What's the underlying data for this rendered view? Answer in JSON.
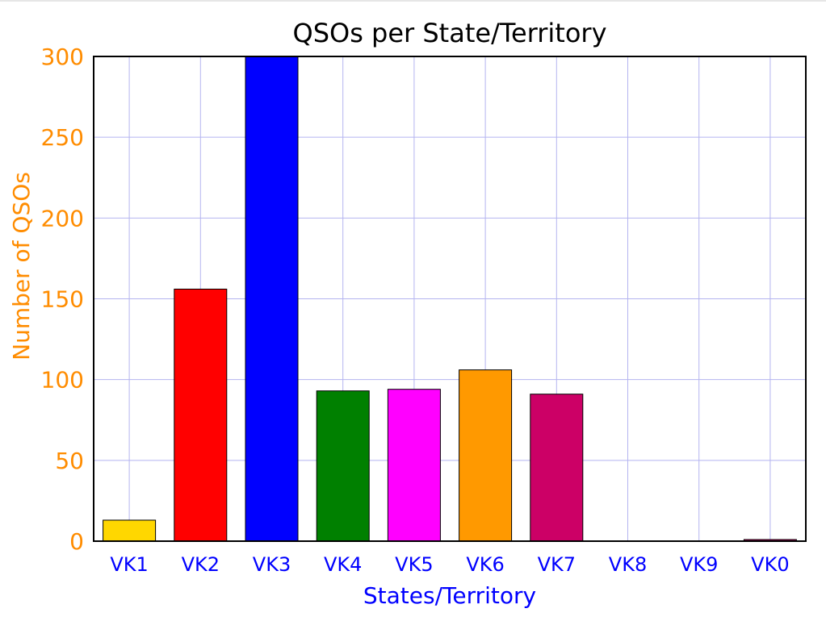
{
  "chart_data": {
    "type": "bar",
    "title": "QSOs per State/Territory",
    "xlabel": "States/Territory",
    "ylabel": "Number of QSOs",
    "categories": [
      "VK1",
      "VK2",
      "VK3",
      "VK4",
      "VK5",
      "VK6",
      "VK7",
      "VK8",
      "VK9",
      "VK0"
    ],
    "values": [
      13,
      156,
      300,
      93,
      94,
      106,
      91,
      0,
      0,
      1
    ],
    "bar_colors": [
      "#ffd700",
      "#ff0000",
      "#0000ff",
      "#008000",
      "#ff00ff",
      "#ff9900",
      "#cc0066",
      "#000000",
      "#000000",
      "#cc0066"
    ],
    "ylim": [
      0,
      300
    ],
    "yticks": [
      0,
      50,
      100,
      150,
      200,
      250,
      300
    ],
    "grid": true,
    "legend": "none"
  },
  "colors": {
    "title": "#000000",
    "ylabel": "#ff8c00",
    "ytick": "#ff8c00",
    "xlabel": "#0000ff",
    "xtick": "#0000ff",
    "grid": "#b4b4f0",
    "axis": "#000000"
  }
}
